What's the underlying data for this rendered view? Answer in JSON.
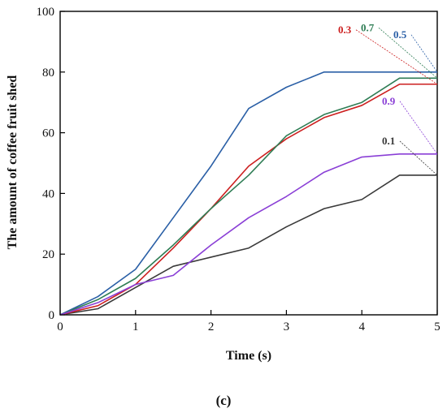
{
  "chart_data": {
    "type": "line",
    "xlabel": "Time (s)",
    "ylabel": "The amount of coffee fruit shed",
    "caption": "(c)",
    "xlim": [
      0,
      5
    ],
    "ylim": [
      0,
      100
    ],
    "x_ticks": [
      0,
      1,
      2,
      3,
      4,
      5
    ],
    "y_ticks": [
      0,
      20,
      40,
      60,
      80,
      100
    ],
    "grid": false,
    "x": [
      0,
      0.5,
      1,
      1.5,
      2,
      2.5,
      3,
      3.5,
      4,
      4.5,
      5
    ],
    "series": [
      {
        "name": "0.1",
        "color": "#3a3a3a",
        "values": [
          0,
          2,
          9,
          16,
          19,
          22,
          29,
          35,
          38,
          46,
          46
        ]
      },
      {
        "name": "0.3",
        "color": "#cc1f1f",
        "values": [
          0,
          3,
          10,
          22,
          35,
          49,
          58,
          65,
          69,
          76,
          76
        ]
      },
      {
        "name": "0.5",
        "color": "#2a5fa6",
        "values": [
          0,
          6,
          15,
          32,
          49,
          68,
          75,
          80,
          80,
          80,
          80
        ]
      },
      {
        "name": "0.7",
        "color": "#2f7d55",
        "values": [
          0,
          5,
          12,
          23,
          35,
          46,
          59,
          66,
          70,
          78,
          78
        ]
      },
      {
        "name": "0.9",
        "color": "#8a3fd6",
        "values": [
          0,
          4,
          10,
          13,
          23,
          32,
          39,
          47,
          52,
          53,
          53
        ]
      }
    ]
  }
}
